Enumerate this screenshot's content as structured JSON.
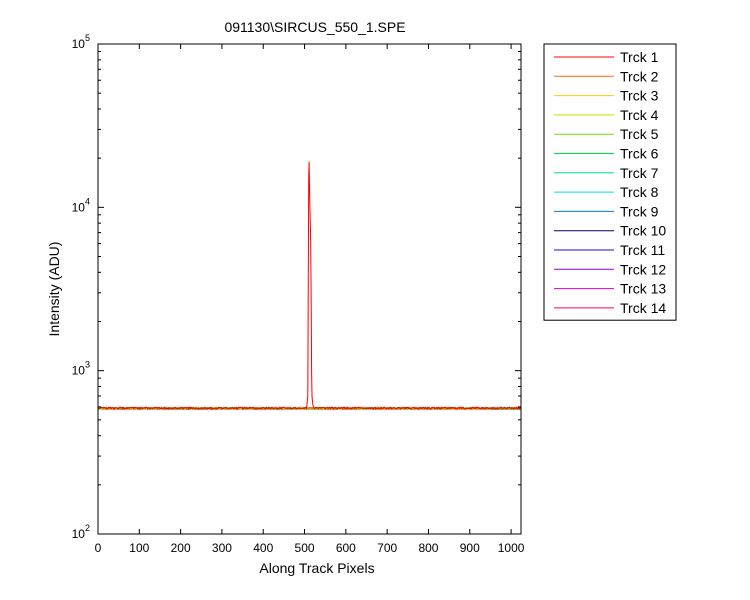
{
  "chart_data": {
    "type": "line",
    "title": "091130\\SIRCUS_550_1.SPE",
    "xlabel": "Along Track Pixels",
    "ylabel": "Intensity (ADU)",
    "xlim": [
      0,
      1024
    ],
    "ylim": [
      100,
      100000
    ],
    "yscale": "log",
    "grid": false,
    "legend_position": "outside-top-right",
    "xticks": [
      0,
      100,
      200,
      300,
      400,
      500,
      600,
      700,
      800,
      900,
      1000
    ],
    "xtick_labels": [
      "0",
      "100",
      "200",
      "300",
      "400",
      "500",
      "600",
      "700",
      "800",
      "900",
      "1000"
    ],
    "yticks": [
      {
        "value": 100,
        "base": "10",
        "exp": "2"
      },
      {
        "value": 1000,
        "base": "10",
        "exp": "3"
      },
      {
        "value": 10000,
        "base": "10",
        "exp": "4"
      },
      {
        "value": 100000,
        "base": "10",
        "exp": "5"
      }
    ],
    "series": [
      {
        "name": "Trck 1",
        "color": "#ff0000",
        "baseline": 590,
        "peak": {
          "x": [
            505,
            508,
            510,
            511,
            512,
            513,
            514,
            515,
            516,
            517,
            518,
            520,
            523
          ],
          "y": [
            590,
            700,
            15000,
            19000,
            14000,
            10000,
            8000,
            6000,
            2500,
            1000,
            700,
            620,
            590
          ]
        }
      },
      {
        "name": "Trck 2",
        "color": "#ff6600",
        "baseline": 588
      },
      {
        "name": "Trck 3",
        "color": "#ffcc00",
        "baseline": 588
      },
      {
        "name": "Trck 4",
        "color": "#ccdd00",
        "baseline": 587
      },
      {
        "name": "Trck 5",
        "color": "#66dd00",
        "baseline": 587
      },
      {
        "name": "Trck 6",
        "color": "#00dd33",
        "baseline": 587
      },
      {
        "name": "Trck 7",
        "color": "#00dd99",
        "baseline": 586
      },
      {
        "name": "Trck 8",
        "color": "#00dddd",
        "baseline": 586
      },
      {
        "name": "Trck 9",
        "color": "#0077dd",
        "baseline": 586
      },
      {
        "name": "Trck 10",
        "color": "#000066",
        "baseline": 587
      },
      {
        "name": "Trck 11",
        "color": "#3300cc",
        "baseline": 587
      },
      {
        "name": "Trck 12",
        "color": "#9900cc",
        "baseline": 588
      },
      {
        "name": "Trck 13",
        "color": "#dd00cc",
        "baseline": 589
      },
      {
        "name": "Trck 14",
        "color": "#ee0066",
        "baseline": 590
      }
    ]
  }
}
